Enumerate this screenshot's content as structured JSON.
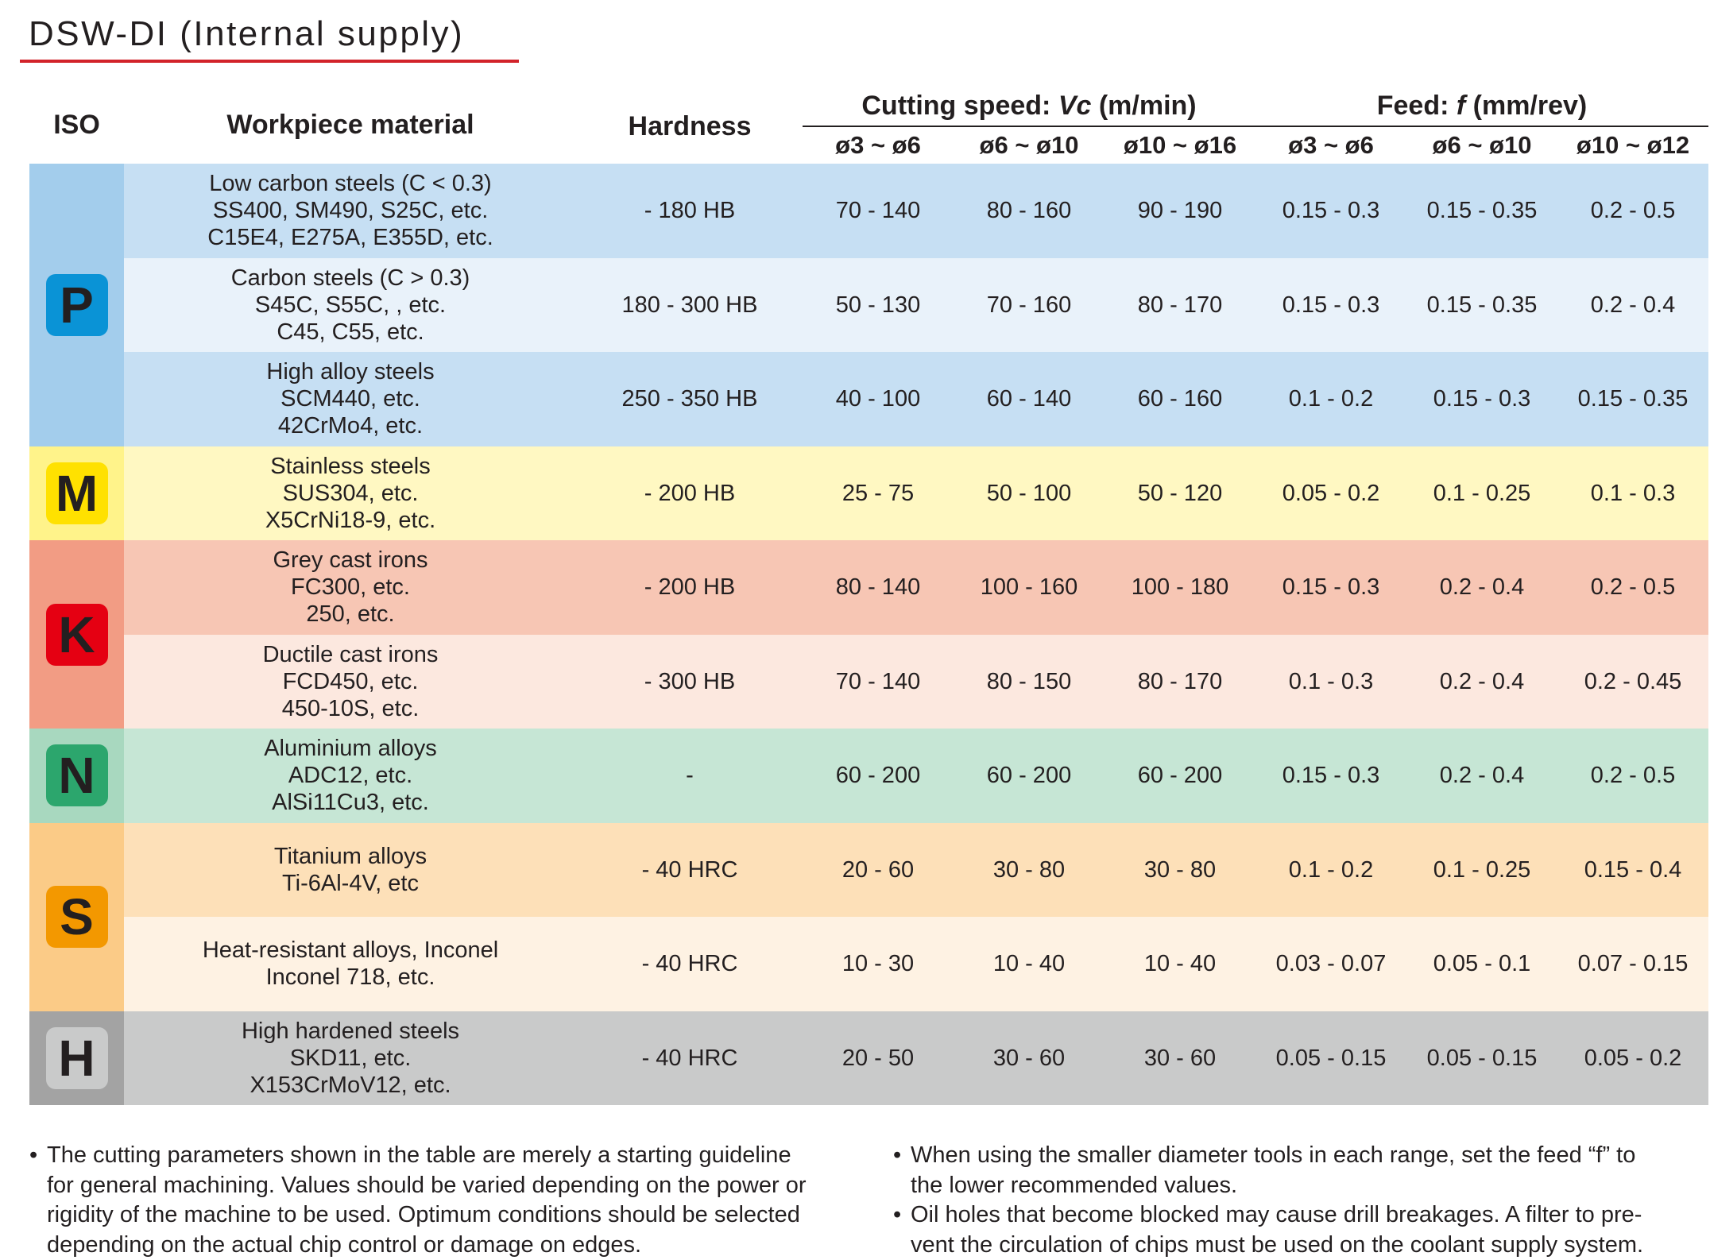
{
  "title": "DSW-DI (Internal supply)",
  "colors": {
    "title_underline": "#d2232a",
    "P": {
      "badge": "#0a93d6",
      "iso_bg": "#a3cdec",
      "row_dark": "#c6dff3",
      "row_light": "#e9f2fa"
    },
    "M": {
      "badge": "#ffe100",
      "iso_bg": "#fff38a",
      "row_dark": "#fff8c2",
      "row_light": "#fffbdf"
    },
    "K": {
      "badge": "#e50012",
      "iso_bg": "#f29c84",
      "row_dark": "#f7c6b4",
      "row_light": "#fce8df"
    },
    "N": {
      "badge": "#2ca66d",
      "iso_bg": "#a8d8bf",
      "row_dark": "#c6e6d5",
      "row_light": "#e3f2ea"
    },
    "S": {
      "badge": "#f39800",
      "iso_bg": "#fbcb87",
      "row_dark": "#fde0b8",
      "row_light": "#fef2e3"
    },
    "H": {
      "badge": "#c9caca",
      "iso_bg": "#a3a3a3",
      "row_dark": "#c9caca",
      "row_light": "#e0e0e0"
    }
  },
  "headers": {
    "iso": "ISO",
    "material": "Workpiece material",
    "hardness": "Hardness",
    "cutting_speed_prefix": "Cutting speed: ",
    "cutting_speed_var": "Vc",
    "cutting_speed_unit": " (m/min)",
    "feed_prefix": "Feed: ",
    "feed_var": "f",
    "feed_unit": " (mm/rev)",
    "speed_cols": [
      "ø3 ~ ø6",
      "ø6 ~ ø10",
      "ø10 ~ ø16"
    ],
    "feed_cols": [
      "ø3 ~ ø6",
      "ø6 ~ ø10",
      "ø10 ~ ø12"
    ]
  },
  "groups": [
    {
      "iso": "P",
      "rows": [
        {
          "material": [
            "Low carbon steels (C < 0.3)",
            "SS400, SM490, S25C, etc.",
            "C15E4, E275A, E355D, etc."
          ],
          "hardness": "- 180 HB",
          "speed": [
            "70 - 140",
            "80 - 160",
            "90 - 190"
          ],
          "feed": [
            "0.15 - 0.3",
            "0.15 - 0.35",
            "0.2 - 0.5"
          ]
        },
        {
          "material": [
            "Carbon steels (C > 0.3)",
            "S45C, S55C, , etc.",
            "C45, C55, etc."
          ],
          "hardness": "180 - 300 HB",
          "speed": [
            "50 - 130",
            "70 - 160",
            "80 - 170"
          ],
          "feed": [
            "0.15 - 0.3",
            "0.15 - 0.35",
            "0.2 - 0.4"
          ]
        },
        {
          "material": [
            "High alloy steels",
            "SCM440, etc.",
            "42CrMo4, etc."
          ],
          "hardness": "250 - 350 HB",
          "speed": [
            "40 - 100",
            "60 - 140",
            "60 - 160"
          ],
          "feed": [
            "0.1 - 0.2",
            "0.15 - 0.3",
            "0.15 - 0.35"
          ]
        }
      ]
    },
    {
      "iso": "M",
      "rows": [
        {
          "material": [
            "Stainless steels",
            "SUS304, etc.",
            "X5CrNi18-9, etc."
          ],
          "hardness": "- 200 HB",
          "speed": [
            "25 - 75",
            "50 - 100",
            "50 - 120"
          ],
          "feed": [
            "0.05 - 0.2",
            "0.1 - 0.25",
            "0.1 - 0.3"
          ]
        }
      ]
    },
    {
      "iso": "K",
      "rows": [
        {
          "material": [
            "Grey cast irons",
            "FC300, etc.",
            "250, etc."
          ],
          "hardness": "- 200 HB",
          "speed": [
            "80 - 140",
            "100 - 160",
            "100 - 180"
          ],
          "feed": [
            "0.15 - 0.3",
            "0.2 - 0.4",
            "0.2 - 0.5"
          ]
        },
        {
          "material": [
            "Ductile cast irons",
            "FCD450, etc.",
            "450-10S, etc."
          ],
          "hardness": "- 300 HB",
          "speed": [
            "70 - 140",
            "80 - 150",
            "80 - 170"
          ],
          "feed": [
            "0.1 - 0.3",
            "0.2 - 0.4",
            "0.2 - 0.45"
          ]
        }
      ]
    },
    {
      "iso": "N",
      "rows": [
        {
          "material": [
            "Aluminium alloys",
            "ADC12, etc.",
            "AlSi11Cu3, etc."
          ],
          "hardness": "-",
          "speed": [
            "60 - 200",
            "60 - 200",
            "60 - 200"
          ],
          "feed": [
            "0.15 - 0.3",
            "0.2 - 0.4",
            "0.2 - 0.5"
          ]
        }
      ]
    },
    {
      "iso": "S",
      "rows": [
        {
          "material": [
            "Titanium alloys",
            "Ti-6Al-4V, etc"
          ],
          "hardness": "- 40 HRC",
          "speed": [
            "20 - 60",
            "30 - 80",
            "30 - 80"
          ],
          "feed": [
            "0.1 - 0.2",
            "0.1 - 0.25",
            "0.15 - 0.4"
          ]
        },
        {
          "material": [
            "Heat-resistant alloys, Inconel",
            "Inconel 718, etc."
          ],
          "hardness": "- 40 HRC",
          "speed": [
            "10 - 30",
            "10 - 40",
            "10 - 40"
          ],
          "feed": [
            "0.03 - 0.07",
            "0.05 - 0.1",
            "0.07 - 0.15"
          ]
        }
      ]
    },
    {
      "iso": "H",
      "rows": [
        {
          "material": [
            "High hardened steels",
            "SKD11, etc.",
            "X153CrMoV12, etc."
          ],
          "hardness": "- 40 HRC",
          "speed": [
            "20 - 50",
            "30 - 60",
            "30 - 60"
          ],
          "feed": [
            "0.05 - 0.15",
            "0.05 - 0.15",
            "0.05 - 0.2"
          ]
        }
      ]
    }
  ],
  "notes": [
    {
      "bullet": "•",
      "lines": [
        "The cutting parameters shown in the table are merely a starting guideline",
        "for general machining. Values should be varied depending on the power or",
        "rigidity of the machine to be used. Optimum conditions should be selected",
        "depending on the actual chip control or damage on edges."
      ]
    },
    {
      "bullet": "•",
      "lines": [
        "When using the smaller diameter tools in each range, set the feed “f” to",
        "the lower recommended values."
      ]
    },
    {
      "bullet": "•",
      "lines": [
        "Oil holes that become blocked may cause drill breakages. A filter to pre-",
        "vent the circulation of chips must be used on the coolant supply system."
      ]
    }
  ]
}
